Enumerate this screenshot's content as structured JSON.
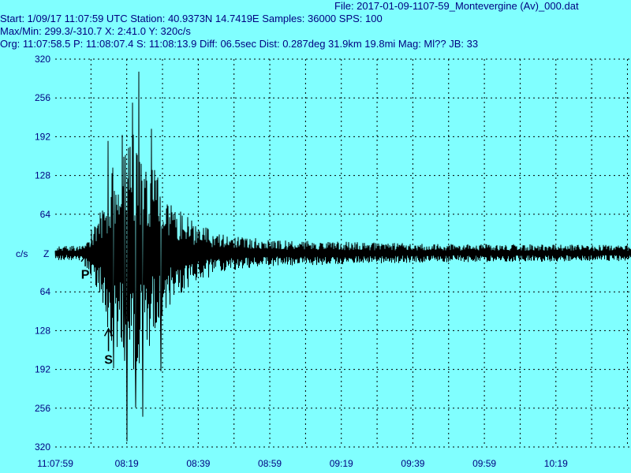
{
  "header": {
    "file_line": "File: 2017-01-09-1107-59_Montevergine (Av)_000.dat",
    "start_line": "Start: 1/09/17 11:07:59 UTC Station:  40.9373N 14.7419E Samples: 36000  SPS: 100",
    "maxmin_line": "Max/Min: 299.3/-310.7 X: 2:41.0 Y: 320c/s",
    "org_line": "Org: 11:07:58.5 P: 11:08:07.4 S: 11:08:13.9 Diff: 06.5sec Dist: 0.287deg 31.9km 19.8mi  Mag: Ml?? JB: 33"
  },
  "chart_data": {
    "type": "line",
    "ylabel": "c/s",
    "channel": "Z",
    "y_ticks": [
      "320",
      "256",
      "192",
      "128",
      "64",
      "",
      "64",
      "128",
      "192",
      "256",
      "320"
    ],
    "ylim": [
      -320,
      320
    ],
    "x_ticks": [
      "11:07:59",
      "08:19",
      "08:39",
      "08:59",
      "09:19",
      "09:39",
      "09:59",
      "10:19"
    ],
    "xlim_seconds": [
      0,
      161
    ],
    "max": 299.3,
    "min": -310.7,
    "p_label": "P",
    "s_label": "S",
    "p_time_s": 8.4,
    "s_time_s": 14.9,
    "envelope": [
      {
        "t": 0,
        "amp": 12
      },
      {
        "t": 8,
        "amp": 12
      },
      {
        "t": 10,
        "amp": 40
      },
      {
        "t": 13,
        "amp": 90
      },
      {
        "t": 16,
        "amp": 150
      },
      {
        "t": 22,
        "amp": 200
      },
      {
        "t": 27,
        "amp": 150
      },
      {
        "t": 32,
        "amp": 95
      },
      {
        "t": 38,
        "amp": 55
      },
      {
        "t": 46,
        "amp": 32
      },
      {
        "t": 60,
        "amp": 22
      },
      {
        "t": 100,
        "amp": 16
      },
      {
        "t": 161,
        "amp": 13
      }
    ],
    "spikes": [
      {
        "t": 23.4,
        "v": 299.3
      },
      {
        "t": 21.7,
        "v": 248
      },
      {
        "t": 18.8,
        "v": 195
      },
      {
        "t": 27.0,
        "v": 205
      },
      {
        "t": 20.1,
        "v": -310.7
      },
      {
        "t": 24.4,
        "v": -270
      },
      {
        "t": 22.6,
        "v": -255
      },
      {
        "t": 16.3,
        "v": -190
      },
      {
        "t": 29.5,
        "v": -195
      },
      {
        "t": 19.5,
        "v": -178
      },
      {
        "t": 14.8,
        "v": 185
      }
    ]
  }
}
